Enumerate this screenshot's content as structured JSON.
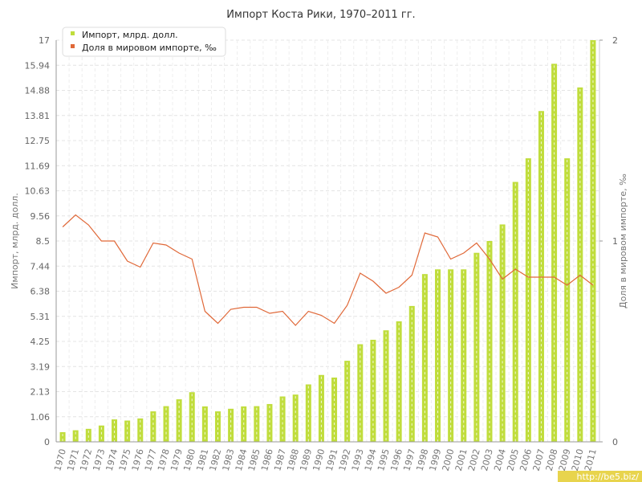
{
  "chart_data": {
    "type": "bar",
    "title": "Импорт Коста Рики, 1970–2011 гг.",
    "x": [
      "1970",
      "1971",
      "1972",
      "1973",
      "1974",
      "1975",
      "1976",
      "1977",
      "1978",
      "1979",
      "1980",
      "1981",
      "1982",
      "1983",
      "1984",
      "1985",
      "1986",
      "1987",
      "1988",
      "1989",
      "1990",
      "1991",
      "1992",
      "1993",
      "1994",
      "1995",
      "1996",
      "1997",
      "1998",
      "1999",
      "2000",
      "2001",
      "2002",
      "2003",
      "2004",
      "2005",
      "2006",
      "2007",
      "2008",
      "2009",
      "2010",
      "2011"
    ],
    "series": [
      {
        "name": "Импорт, млрд. долл.",
        "type": "bar",
        "axis": "left",
        "color": "#c0dd3c",
        "values": [
          0.41,
          0.49,
          0.55,
          0.69,
          0.95,
          0.9,
          0.99,
          1.29,
          1.51,
          1.8,
          2.1,
          1.5,
          1.29,
          1.4,
          1.5,
          1.51,
          1.6,
          1.92,
          2.0,
          2.43,
          2.83,
          2.72,
          3.43,
          4.13,
          4.32,
          4.72,
          5.1,
          5.75,
          7.1,
          7.3,
          7.3,
          7.3,
          8.0,
          8.5,
          9.2,
          11.0,
          12.0,
          14.0,
          16.0,
          12.0,
          15.0,
          17.0
        ]
      },
      {
        "name": "Доля в мировом импорте, ‰",
        "type": "line",
        "axis": "right",
        "color": "#e06838",
        "values": [
          1.07,
          1.13,
          1.08,
          1.0,
          1.0,
          0.9,
          0.87,
          0.99,
          0.98,
          0.94,
          0.91,
          0.65,
          0.59,
          0.66,
          0.67,
          0.67,
          0.64,
          0.65,
          0.58,
          0.65,
          0.63,
          0.59,
          0.68,
          0.84,
          0.8,
          0.74,
          0.77,
          0.83,
          1.04,
          1.02,
          0.91,
          0.94,
          0.99,
          0.91,
          0.81,
          0.86,
          0.82,
          0.82,
          0.82,
          0.78,
          0.83,
          0.78
        ]
      }
    ],
    "ylabel": "Импорт, млрд. долл.",
    "y2label": "Доля в мировом импорте, ‰",
    "ylim": [
      0,
      17
    ],
    "y2lim": [
      0,
      2
    ],
    "yticks": [
      "0",
      "1.06",
      "2.13",
      "3.19",
      "4.25",
      "5.31",
      "6.38",
      "7.44",
      "8.5",
      "9.56",
      "10.63",
      "11.69",
      "12.75",
      "13.81",
      "14.88",
      "15.94",
      "17"
    ],
    "y2ticks": [
      "0",
      "1",
      "2"
    ],
    "grid": true,
    "legend": "top-left"
  },
  "watermark": "http://be5.biz/"
}
